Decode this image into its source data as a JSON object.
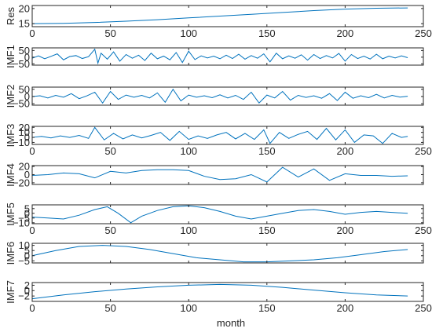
{
  "chart_data": [
    {
      "type": "line",
      "panel": "Res",
      "ylabel": "Res",
      "xlim": [
        0,
        250
      ],
      "ylim": [
        14,
        21
      ],
      "xticks": [
        0,
        50,
        100,
        150,
        200,
        250
      ],
      "yticks": [
        15,
        20
      ],
      "ytick_labels": [
        "15",
        "20"
      ],
      "show_xtick_labels": true,
      "x": [
        0,
        20,
        40,
        60,
        80,
        100,
        120,
        140,
        160,
        180,
        200,
        220,
        240
      ],
      "values": [
        15.0,
        15.1,
        15.4,
        15.8,
        16.3,
        16.9,
        17.5,
        18.1,
        18.7,
        19.3,
        19.8,
        20.1,
        20.2
      ]
    },
    {
      "type": "line",
      "panel": "IMF1",
      "ylabel": "IMF1",
      "xlim": [
        0,
        250
      ],
      "ylim": [
        -60,
        70
      ],
      "xticks": [
        0,
        50,
        100,
        150,
        200,
        250
      ],
      "yticks": [
        -50,
        0,
        50
      ],
      "ytick_labels": [
        "−50",
        "0",
        "50"
      ],
      "show_xtick_labels": false,
      "x": [
        0,
        4,
        8,
        12,
        16,
        20,
        24,
        28,
        32,
        36,
        40,
        42,
        44,
        48,
        52,
        56,
        60,
        64,
        68,
        72,
        76,
        80,
        84,
        88,
        92,
        96,
        100,
        104,
        108,
        112,
        116,
        120,
        124,
        128,
        132,
        136,
        140,
        144,
        148,
        152,
        156,
        160,
        164,
        168,
        172,
        176,
        180,
        184,
        188,
        192,
        196,
        200,
        204,
        208,
        212,
        216,
        220,
        224,
        228,
        232,
        236,
        240
      ],
      "values": [
        -8,
        10,
        -12,
        6,
        25,
        -20,
        5,
        12,
        -10,
        4,
        60,
        -45,
        30,
        -15,
        40,
        -30,
        20,
        -8,
        15,
        -25,
        30,
        -12,
        8,
        -20,
        35,
        -40,
        45,
        -18,
        10,
        -6,
        8,
        -12,
        15,
        -10,
        22,
        -15,
        12,
        -8,
        25,
        -35,
        30,
        -12,
        10,
        -8,
        18,
        -22,
        20,
        -10,
        12,
        -6,
        28,
        -30,
        20,
        -10,
        8,
        -14,
        22,
        -12,
        8,
        -6,
        10,
        -4
      ]
    },
    {
      "type": "line",
      "panel": "IMF2",
      "ylabel": "IMF2",
      "xlim": [
        0,
        250
      ],
      "ylim": [
        -60,
        65
      ],
      "xticks": [
        0,
        50,
        100,
        150,
        200,
        250
      ],
      "yticks": [
        -50,
        0,
        50
      ],
      "ytick_labels": [
        "−50",
        "0",
        "50"
      ],
      "show_xtick_labels": false,
      "x": [
        0,
        5,
        10,
        15,
        20,
        25,
        30,
        35,
        40,
        45,
        50,
        55,
        60,
        65,
        70,
        75,
        80,
        85,
        90,
        95,
        100,
        105,
        110,
        115,
        120,
        125,
        130,
        135,
        140,
        145,
        150,
        155,
        160,
        165,
        170,
        175,
        180,
        185,
        190,
        195,
        200,
        205,
        210,
        215,
        220,
        225,
        230,
        235,
        240
      ],
      "values": [
        0,
        5,
        -10,
        8,
        -5,
        20,
        -15,
        5,
        30,
        -45,
        35,
        -20,
        10,
        -5,
        8,
        -10,
        25,
        -40,
        50,
        -30,
        10,
        -5,
        5,
        -8,
        12,
        -10,
        8,
        -20,
        30,
        -45,
        10,
        -10,
        35,
        -25,
        8,
        -6,
        5,
        -12,
        20,
        -28,
        30,
        -12,
        5,
        -8,
        15,
        -10,
        8,
        -4,
        2
      ]
    },
    {
      "type": "line",
      "panel": "IMF3",
      "ylabel": "IMF3",
      "xlim": [
        0,
        250
      ],
      "ylim": [
        -14,
        22
      ],
      "xticks": [
        0,
        50,
        100,
        150,
        200,
        250
      ],
      "yticks": [
        -10,
        0,
        10,
        20
      ],
      "ytick_labels": [
        "−10",
        "0",
        "10",
        "20"
      ],
      "show_xtick_labels": true,
      "x": [
        0,
        6,
        12,
        18,
        24,
        30,
        36,
        40,
        46,
        52,
        58,
        64,
        70,
        76,
        82,
        88,
        94,
        100,
        106,
        112,
        118,
        124,
        130,
        136,
        142,
        148,
        152,
        158,
        164,
        170,
        176,
        182,
        188,
        194,
        200,
        206,
        212,
        218,
        224,
        230,
        236,
        240
      ],
      "values": [
        0,
        2,
        -1,
        3,
        0,
        4,
        -2,
        20,
        -5,
        8,
        -3,
        5,
        -1,
        4,
        10,
        -6,
        12,
        -4,
        3,
        -2,
        5,
        10,
        -3,
        8,
        -4,
        15,
        -12,
        10,
        -2,
        6,
        12,
        -4,
        18,
        -5,
        15,
        -10,
        5,
        3,
        -12,
        8,
        0,
        2
      ]
    },
    {
      "type": "line",
      "panel": "IMF4",
      "ylabel": "IMF4",
      "xlim": [
        0,
        250
      ],
      "ylim": [
        -24,
        22
      ],
      "xticks": [
        0,
        50,
        100,
        150,
        200,
        250
      ],
      "yticks": [
        -20,
        0,
        20
      ],
      "ytick_labels": [
        "−20",
        "0",
        "20"
      ],
      "show_xtick_labels": false,
      "x": [
        0,
        10,
        20,
        30,
        40,
        50,
        60,
        70,
        80,
        90,
        100,
        110,
        120,
        130,
        140,
        150,
        160,
        170,
        180,
        190,
        200,
        210,
        220,
        230,
        240
      ],
      "values": [
        -2,
        0,
        4,
        2,
        -8,
        8,
        4,
        10,
        12,
        12,
        10,
        -4,
        -12,
        -10,
        0,
        -18,
        18,
        -6,
        14,
        -14,
        2,
        -2,
        -2,
        -4,
        -3
      ]
    },
    {
      "type": "line",
      "panel": "IMF5",
      "ylabel": "IMF5",
      "xlim": [
        0,
        250
      ],
      "ylim": [
        -11,
        9
      ],
      "xticks": [
        0,
        50,
        100,
        150,
        200,
        250
      ],
      "yticks": [
        -10,
        -5,
        0,
        5
      ],
      "ytick_labels": [
        "−10",
        "−5",
        "0",
        "5"
      ],
      "show_xtick_labels": true,
      "x": [
        0,
        10,
        20,
        30,
        40,
        48,
        55,
        63,
        70,
        80,
        90,
        100,
        110,
        120,
        130,
        140,
        150,
        160,
        170,
        180,
        190,
        200,
        210,
        220,
        230,
        240
      ],
      "values": [
        -4,
        -5,
        -6,
        -2,
        4,
        7,
        0,
        -10,
        -3,
        3,
        7,
        8,
        6,
        2,
        -3,
        -6,
        -3,
        0,
        3,
        4,
        2,
        -1,
        1,
        2,
        1,
        0
      ]
    },
    {
      "type": "line",
      "panel": "IMF6",
      "ylabel": "IMF6",
      "xlim": [
        0,
        250
      ],
      "ylim": [
        -7,
        12
      ],
      "xticks": [
        0,
        50,
        100,
        150,
        200,
        250
      ],
      "yticks": [
        -5,
        0,
        5,
        10
      ],
      "ytick_labels": [
        "−5",
        "0",
        "5",
        "10"
      ],
      "show_xtick_labels": false,
      "x": [
        0,
        15,
        30,
        45,
        60,
        75,
        90,
        105,
        120,
        135,
        150,
        165,
        180,
        195,
        210,
        225,
        240
      ],
      "values": [
        0,
        5,
        9,
        10,
        9,
        6,
        2,
        -2,
        -4,
        -6,
        -6,
        -5,
        -4,
        -2,
        1,
        4,
        6
      ]
    },
    {
      "type": "line",
      "panel": "IMF7",
      "ylabel": "IMF7",
      "xlim": [
        0,
        250
      ],
      "ylim": [
        -4,
        3
      ],
      "xticks": [
        0,
        50,
        100,
        150,
        200,
        250
      ],
      "yticks": [
        -2,
        0,
        2
      ],
      "ytick_labels": [
        "−2",
        "0",
        "2"
      ],
      "show_xtick_labels": true,
      "x": [
        0,
        20,
        40,
        60,
        80,
        100,
        120,
        140,
        160,
        180,
        200,
        220,
        240
      ],
      "values": [
        -3.0,
        -1.6,
        -0.4,
        0.6,
        1.4,
        2.0,
        2.3,
        2.0,
        1.2,
        0.2,
        -0.8,
        -1.6,
        -2.0
      ]
    }
  ],
  "xlabel": "month",
  "line_color": "#0072bd"
}
